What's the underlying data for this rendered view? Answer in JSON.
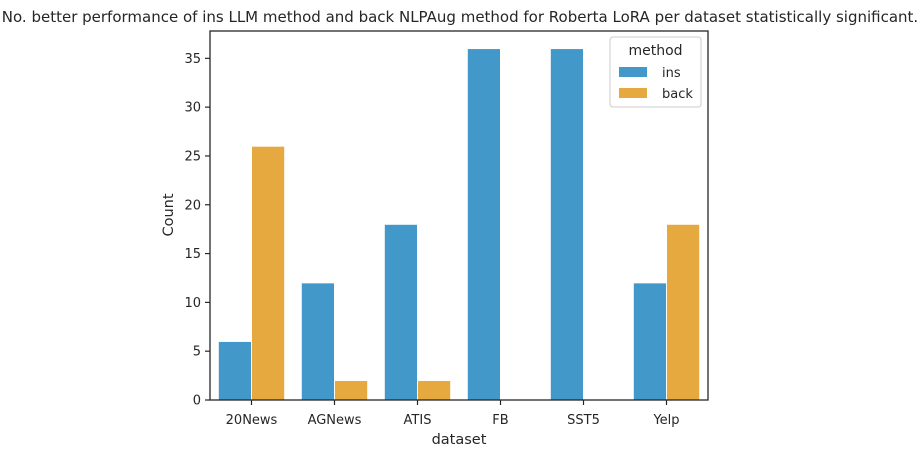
{
  "chart_data": {
    "type": "bar",
    "title": "No. better performance of ins LLM method and back NLPAug method for Roberta LoRA per dataset statistically significant.",
    "xlabel": "dataset",
    "ylabel": "Count",
    "categories": [
      "20News",
      "AGNews",
      "ATIS",
      "FB",
      "SST5",
      "Yelp"
    ],
    "series": [
      {
        "name": "ins",
        "values": [
          6,
          12,
          18,
          36,
          36,
          12
        ]
      },
      {
        "name": "back",
        "values": [
          26,
          2,
          2,
          0,
          0,
          18
        ]
      }
    ],
    "ylim": [
      0,
      37.8
    ],
    "yticks": [
      0,
      5,
      10,
      15,
      20,
      25,
      30,
      35
    ],
    "grid": false,
    "legend": {
      "title": "method",
      "placement": "top-right"
    }
  },
  "colors": {
    "ins": "#4198c9",
    "back": "#e5a93f",
    "axis": "#262626"
  }
}
